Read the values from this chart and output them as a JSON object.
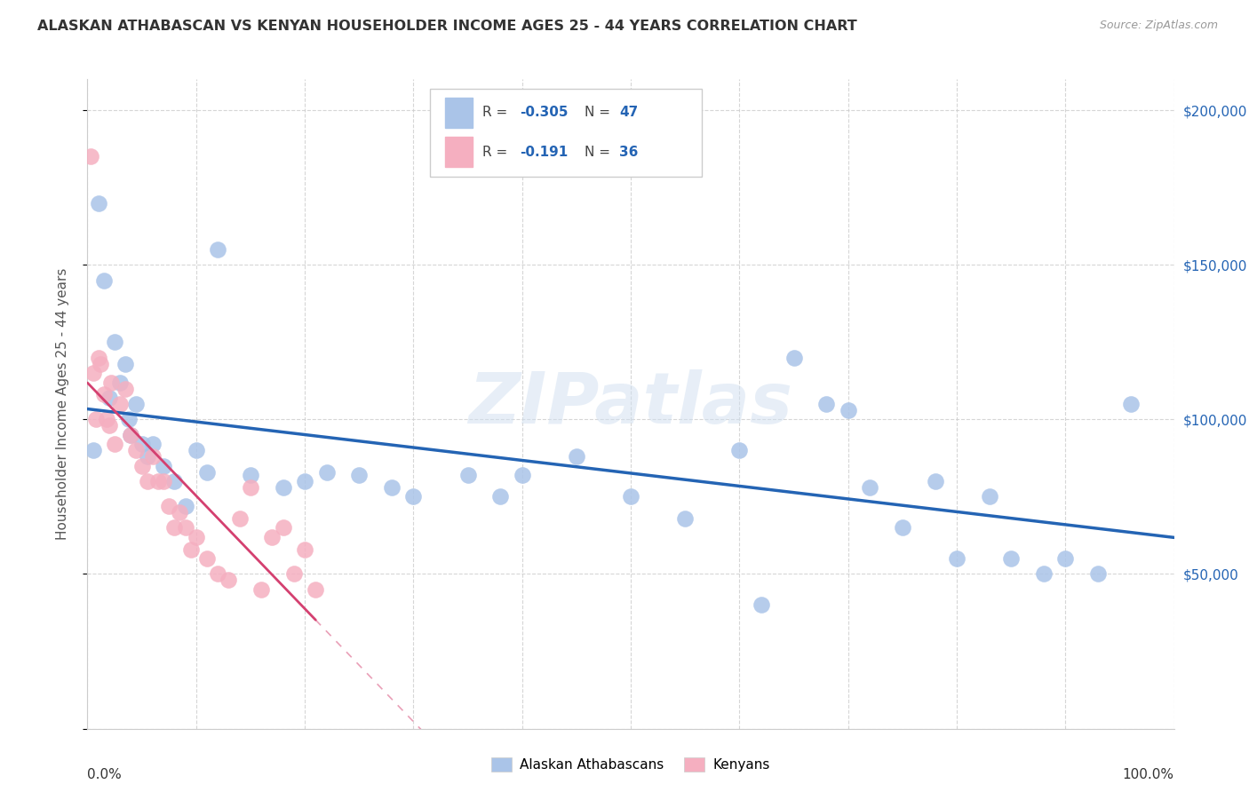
{
  "title": "ALASKAN ATHABASCAN VS KENYAN HOUSEHOLDER INCOME AGES 25 - 44 YEARS CORRELATION CHART",
  "source": "Source: ZipAtlas.com",
  "ylabel": "Householder Income Ages 25 - 44 years",
  "watermark": "ZIPatlas",
  "athabascan_color": "#aac4e8",
  "kenyan_color": "#f5afc0",
  "trend_athabascan_color": "#2464b4",
  "trend_kenyan_color": "#d44070",
  "background_color": "#ffffff",
  "athabascan_x": [
    0.5,
    1.0,
    1.5,
    2.0,
    2.5,
    3.0,
    3.5,
    3.8,
    4.0,
    4.5,
    5.0,
    5.5,
    6.0,
    7.0,
    8.0,
    9.0,
    10.0,
    11.0,
    12.0,
    15.0,
    18.0,
    20.0,
    22.0,
    25.0,
    28.0,
    30.0,
    35.0,
    38.0,
    40.0,
    45.0,
    50.0,
    55.0,
    60.0,
    62.0,
    65.0,
    68.0,
    70.0,
    72.0,
    75.0,
    78.0,
    80.0,
    83.0,
    85.0,
    88.0,
    90.0,
    93.0,
    96.0
  ],
  "athabascan_y": [
    90000,
    170000,
    145000,
    107000,
    125000,
    112000,
    118000,
    100000,
    95000,
    105000,
    92000,
    88000,
    92000,
    85000,
    80000,
    72000,
    90000,
    83000,
    155000,
    82000,
    78000,
    80000,
    83000,
    82000,
    78000,
    75000,
    82000,
    75000,
    82000,
    88000,
    75000,
    68000,
    90000,
    40000,
    120000,
    105000,
    103000,
    78000,
    65000,
    80000,
    55000,
    75000,
    55000,
    50000,
    55000,
    50000,
    105000
  ],
  "kenyan_x": [
    0.3,
    0.5,
    0.8,
    1.0,
    1.2,
    1.5,
    1.8,
    2.0,
    2.2,
    2.5,
    3.0,
    3.5,
    4.0,
    4.5,
    5.0,
    5.5,
    6.0,
    6.5,
    7.0,
    7.5,
    8.0,
    8.5,
    9.0,
    9.5,
    10.0,
    11.0,
    12.0,
    13.0,
    14.0,
    15.0,
    16.0,
    17.0,
    18.0,
    19.0,
    20.0,
    21.0
  ],
  "kenyan_y": [
    185000,
    115000,
    100000,
    120000,
    118000,
    108000,
    100000,
    98000,
    112000,
    92000,
    105000,
    110000,
    95000,
    90000,
    85000,
    80000,
    88000,
    80000,
    80000,
    72000,
    65000,
    70000,
    65000,
    58000,
    62000,
    55000,
    50000,
    48000,
    68000,
    78000,
    45000,
    62000,
    65000,
    50000,
    58000,
    45000
  ],
  "xlim": [
    0,
    100
  ],
  "ylim": [
    0,
    210000
  ],
  "ytick_positions": [
    0,
    50000,
    100000,
    150000,
    200000
  ],
  "ytick_labels_right": [
    "",
    "$50,000",
    "$100,000",
    "$150,000",
    "$200,000"
  ],
  "xtick_positions": [
    0,
    10,
    20,
    30,
    40,
    50,
    60,
    70,
    80,
    90,
    100
  ]
}
